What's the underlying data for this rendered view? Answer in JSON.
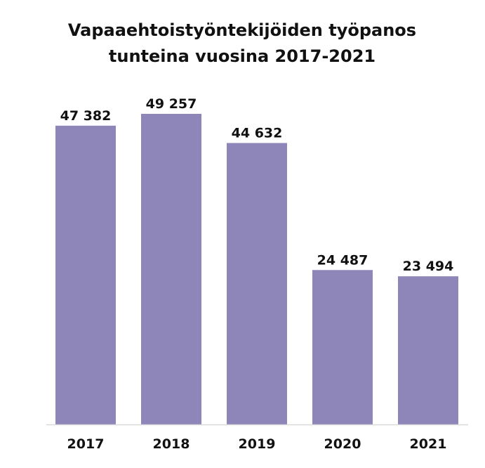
{
  "chart_data": {
    "type": "bar",
    "title_lines": [
      "Vapaaehtoistyöntekijöiden työpanos",
      "tunteina vuosina 2017-2021"
    ],
    "categories": [
      "2017",
      "2018",
      "2019",
      "2020",
      "2021"
    ],
    "values": [
      47382,
      49257,
      44632,
      24487,
      23494
    ],
    "value_labels": [
      "47 382",
      "49 257",
      "44 632",
      "24 487",
      "23 494"
    ],
    "xlabel": "",
    "ylabel": "",
    "ylim": [
      0,
      49257
    ],
    "grid": false,
    "legend": "none",
    "colors": {
      "bar": "#8e85b8",
      "axis": "#d9d9d9",
      "text": "#111111"
    }
  }
}
